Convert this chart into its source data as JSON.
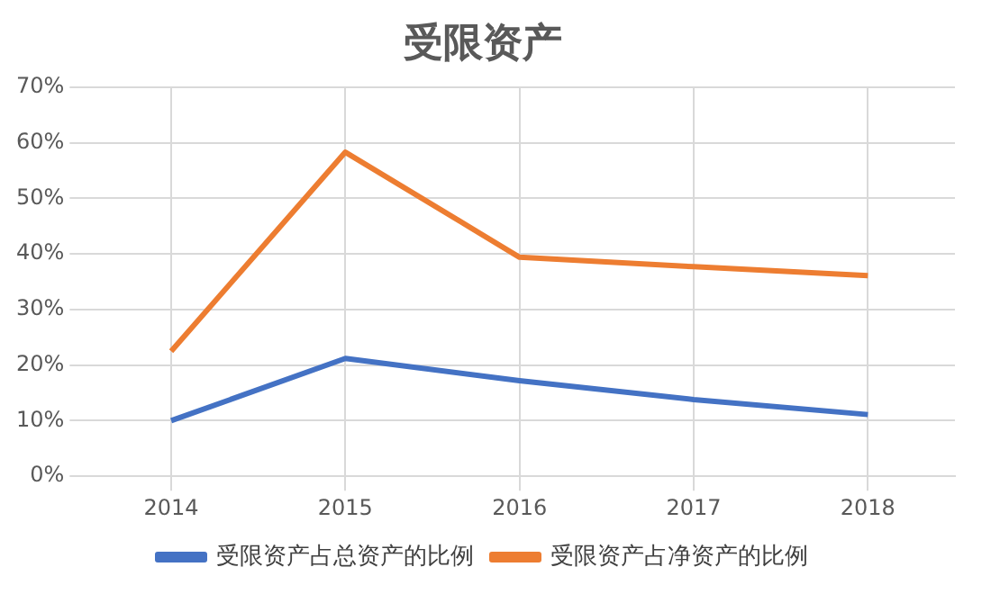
{
  "chart_data": {
    "type": "line",
    "title": "受限资产",
    "categories": [
      "2014",
      "2015",
      "2016",
      "2017",
      "2018"
    ],
    "series": [
      {
        "name": "受限资产占总资产的比例",
        "color": "#4472c4",
        "values": [
          10.0,
          21.2,
          17.2,
          13.8,
          11.1
        ]
      },
      {
        "name": "受限资产占净资产的比例",
        "color": "#ed7d31",
        "values": [
          22.5,
          58.3,
          39.4,
          37.7,
          36.1
        ]
      }
    ],
    "ylim": [
      0,
      70
    ],
    "yticks": [
      {
        "value": 0,
        "label": "0%"
      },
      {
        "value": 10,
        "label": "10%"
      },
      {
        "value": 20,
        "label": "20%"
      },
      {
        "value": 30,
        "label": "30%"
      },
      {
        "value": 40,
        "label": "40%"
      },
      {
        "value": 50,
        "label": "50%"
      },
      {
        "value": 60,
        "label": "60%"
      },
      {
        "value": 70,
        "label": "70%"
      }
    ],
    "grid": true,
    "legend": "bottom",
    "marker": "none",
    "line_style": "solid"
  }
}
